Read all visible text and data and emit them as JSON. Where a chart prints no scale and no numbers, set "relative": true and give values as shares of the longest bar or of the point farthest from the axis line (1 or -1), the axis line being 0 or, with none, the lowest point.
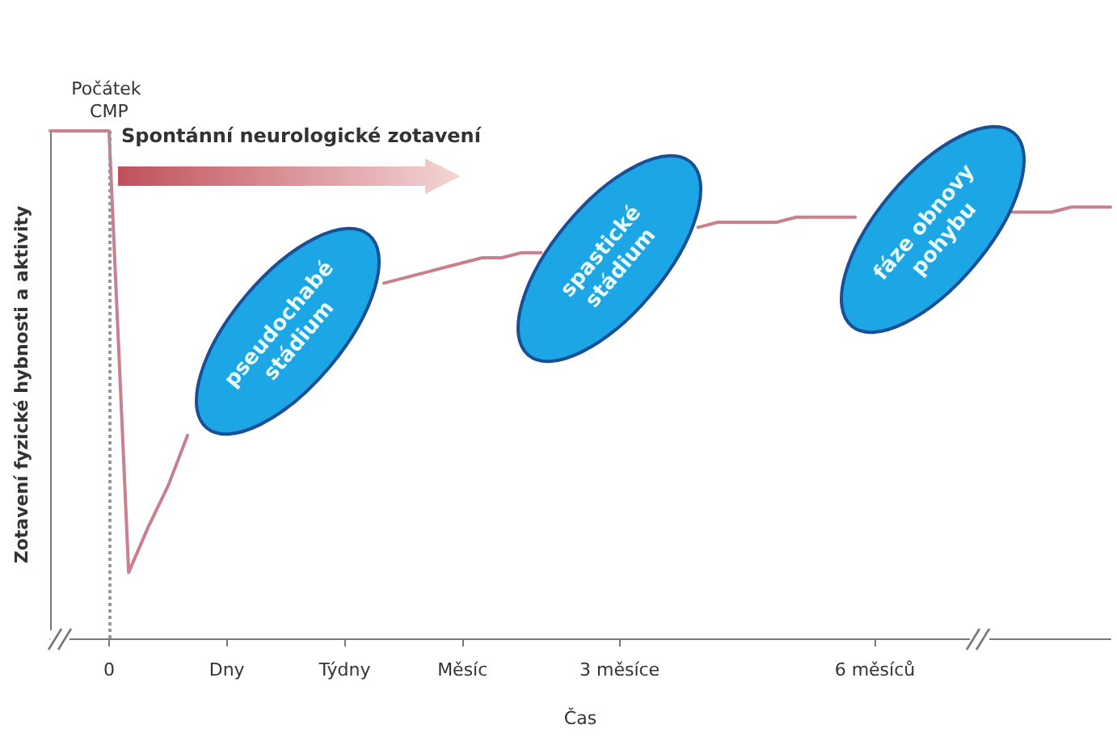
{
  "chart_data": {
    "type": "line",
    "relative": true,
    "xlabel": "Čas",
    "ylabel": "Zotavení fyzické hybnosti a aktivity",
    "categories": [
      null,
      null,
      null,
      "0",
      null,
      null,
      null,
      null,
      null,
      "Dny",
      null,
      null,
      null,
      null,
      null,
      "Týdny",
      null,
      null,
      null,
      null,
      null,
      "Měsíc",
      null,
      null,
      null,
      null,
      null,
      null,
      null,
      "3 měsíce",
      null,
      null,
      null,
      null,
      null,
      null,
      null,
      null,
      null,
      null,
      null,
      null,
      "6 měsíců",
      null,
      null,
      null,
      null,
      null,
      null,
      null,
      null,
      null,
      null,
      null,
      null
    ],
    "series": [
      {
        "color": "#c97f8c",
        "values": [
          1,
          1,
          1,
          1,
          0.13,
          0.22,
          0.3,
          0.4,
          null,
          null,
          null,
          null,
          null,
          null,
          null,
          null,
          null,
          0.7,
          0.71,
          0.72,
          0.73,
          0.74,
          0.75,
          0.75,
          0.76,
          0.76,
          null,
          null,
          null,
          null,
          null,
          null,
          null,
          0.81,
          0.82,
          0.82,
          0.82,
          0.82,
          0.83,
          0.83,
          0.83,
          0.83,
          null,
          null,
          null,
          null,
          null,
          null,
          null,
          0.84,
          0.84,
          0.84,
          0.85,
          0.85,
          0.85
        ]
      }
    ],
    "ref_lines": [
      {
        "axis": "x",
        "value": "0",
        "label": "Počátek CMP",
        "color": "#999999",
        "line_style": "dotted"
      }
    ],
    "annotations": [
      "Spontánní neurologické zotavení",
      "pseudochabé stádium",
      "spastické stádium",
      "fáze obnovy pohybu"
    ],
    "marker": "none",
    "line_style": "solid",
    "grid": false
  }
}
